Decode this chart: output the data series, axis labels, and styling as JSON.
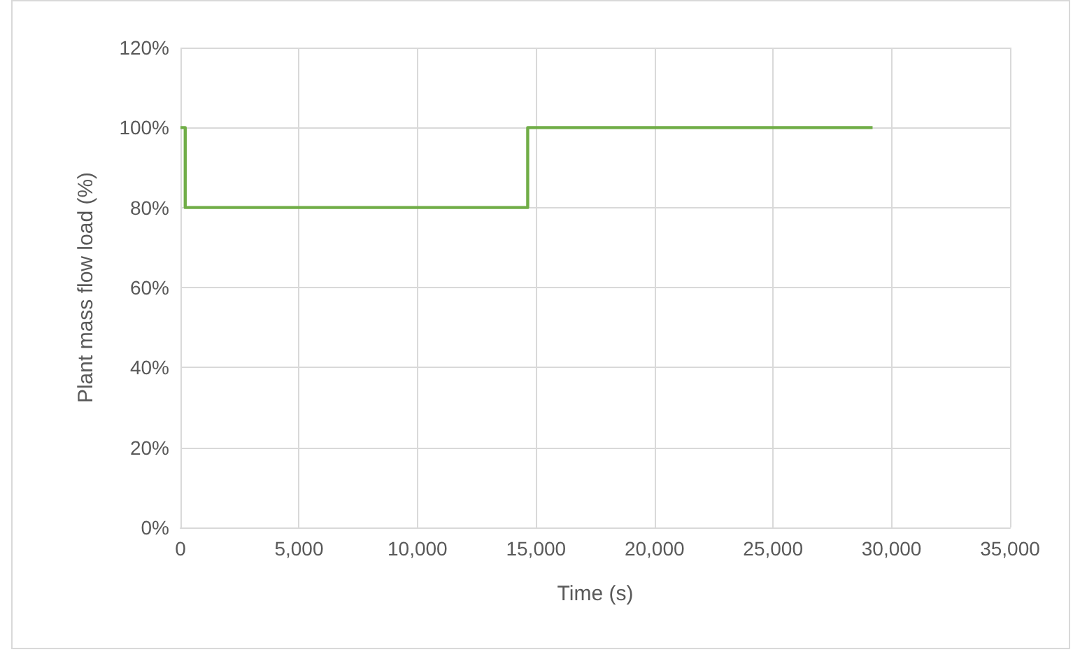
{
  "chart_data": {
    "type": "step",
    "xlabel": "Time (s)",
    "ylabel": "Plant mass flow load (%)",
    "x": [
      0,
      200,
      14650,
      29200
    ],
    "series": [
      {
        "color": "#70ad47",
        "values": [
          100,
          80,
          100,
          100
        ]
      }
    ],
    "xlim": [
      0,
      35000
    ],
    "xticks": [
      {
        "value": 0,
        "label": "0"
      },
      {
        "value": 5000,
        "label": "5,000"
      },
      {
        "value": 10000,
        "label": "10,000"
      },
      {
        "value": 15000,
        "label": "15,000"
      },
      {
        "value": 20000,
        "label": "20,000"
      },
      {
        "value": 25000,
        "label": "25,000"
      },
      {
        "value": 30000,
        "label": "30,000"
      },
      {
        "value": 35000,
        "label": "35,000"
      }
    ],
    "ylim": [
      0,
      120
    ],
    "yticks": [
      {
        "value": 0,
        "label": "0%"
      },
      {
        "value": 20,
        "label": "20%"
      },
      {
        "value": 40,
        "label": "40%"
      },
      {
        "value": 60,
        "label": "60%"
      },
      {
        "value": 80,
        "label": "80%"
      },
      {
        "value": 100,
        "label": "100%"
      },
      {
        "value": 120,
        "label": "120%"
      }
    ],
    "grid": true,
    "marker": "none",
    "line_style": "solid"
  }
}
